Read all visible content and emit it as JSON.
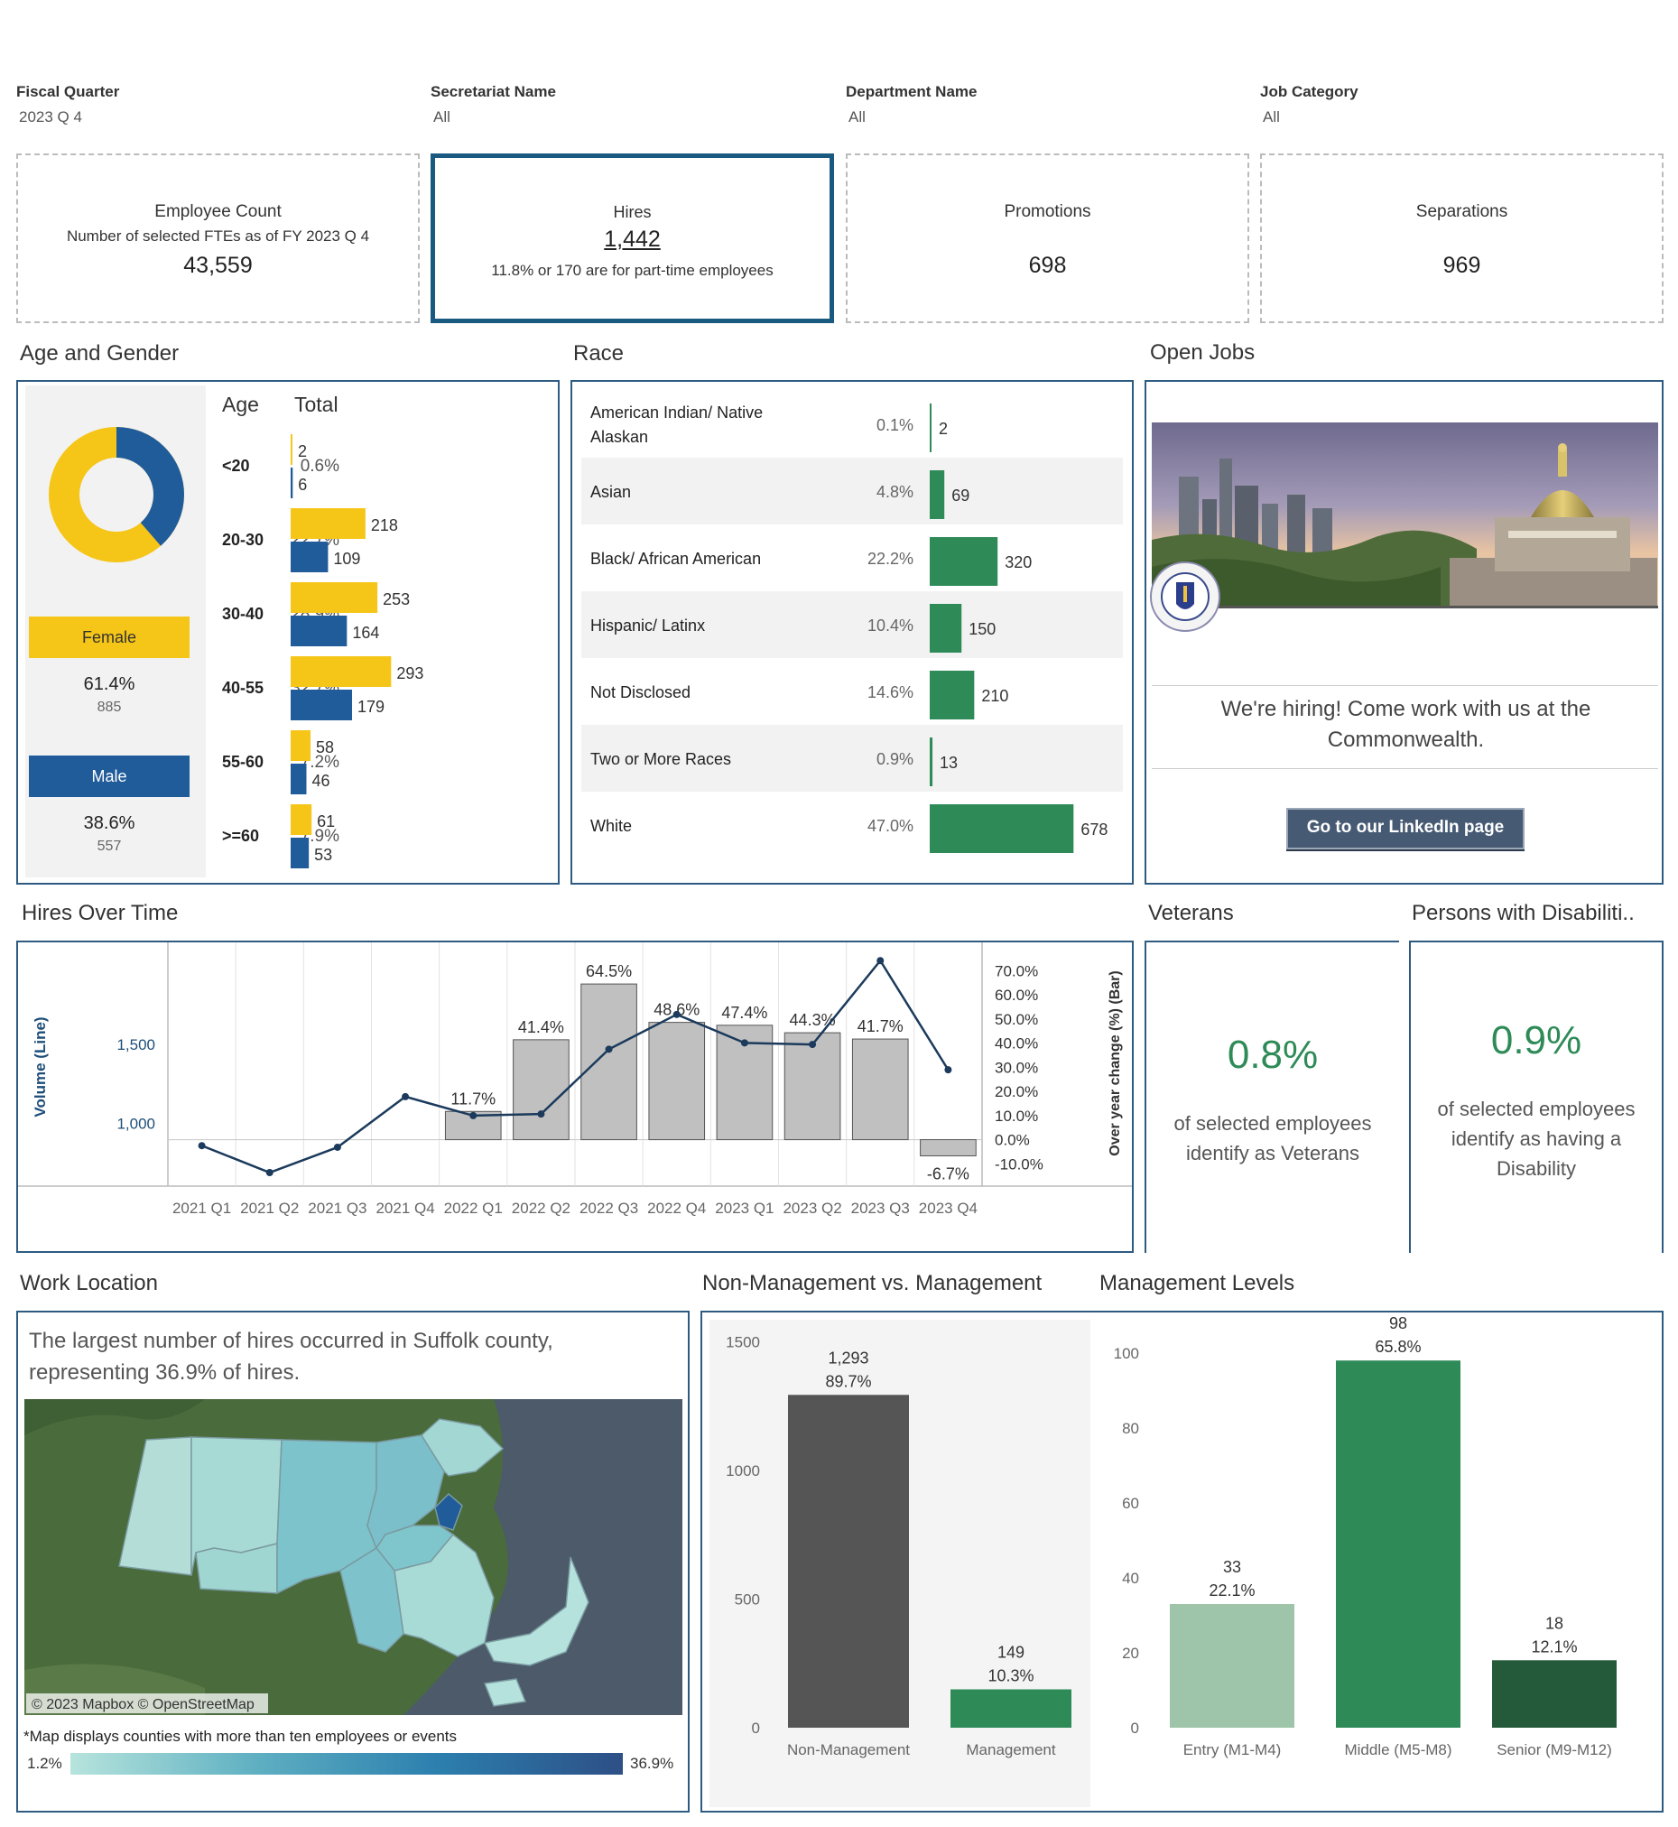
{
  "filters": [
    {
      "label": "Fiscal Quarter",
      "value": "2023 Q 4"
    },
    {
      "label": "Secretariat Name",
      "value": "All"
    },
    {
      "label": "Department Name",
      "value": "All"
    },
    {
      "label": "Job Category",
      "value": "All"
    }
  ],
  "kpis": {
    "employee_count": {
      "title": "Employee Count",
      "subtitle": "Number of selected FTEs as of FY 2023 Q 4",
      "value": "43,559"
    },
    "hires": {
      "title": "Hires",
      "value": "1,442",
      "subtitle": "11.8% or 170 are for part-time employees"
    },
    "promotions": {
      "title": "Promotions",
      "value": "698"
    },
    "separations": {
      "title": "Separations",
      "value": "969"
    }
  },
  "age_gender": {
    "title": "Age and Gender",
    "col_age": "Age",
    "col_total": "Total",
    "female": {
      "label": "Female",
      "pct": "61.4%",
      "count": "885",
      "fraction": 0.614,
      "color": "#f5c518"
    },
    "male": {
      "label": "Male",
      "pct": "38.6%",
      "count": "557",
      "fraction": 0.386,
      "color": "#1f5c99"
    },
    "rows": [
      {
        "age": "<20",
        "total": "0.6%",
        "female": 2,
        "male": 6
      },
      {
        "age": "20-30",
        "total": "22.7%",
        "female": 218,
        "male": 109
      },
      {
        "age": "30-40",
        "total": "28.9%",
        "female": 253,
        "male": 164
      },
      {
        "age": "40-55",
        "total": "32.7%",
        "female": 293,
        "male": 179
      },
      {
        "age": "55-60",
        "total": "7.2%",
        "female": 58,
        "male": 46
      },
      {
        "age": ">=60",
        "total": "7.9%",
        "female": 61,
        "male": 53
      }
    ]
  },
  "race": {
    "title": "Race",
    "color": "#2e8b57",
    "rows": [
      {
        "label": "American Indian/ Native Alaskan",
        "pct": "0.1%",
        "value": 2
      },
      {
        "label": "Asian",
        "pct": "4.8%",
        "value": 69
      },
      {
        "label": "Black/ African American",
        "pct": "22.2%",
        "value": 320
      },
      {
        "label": "Hispanic/ Latinx",
        "pct": "10.4%",
        "value": 150
      },
      {
        "label": "Not Disclosed",
        "pct": "14.6%",
        "value": 210
      },
      {
        "label": "Two or More Races",
        "pct": "0.9%",
        "value": 13
      },
      {
        "label": "White",
        "pct": "47.0%",
        "value": 678
      }
    ]
  },
  "open_jobs": {
    "title": "Open Jobs",
    "message": "We're hiring! Come work with us at the Commonwealth.",
    "button": "Go to our LinkedIn page"
  },
  "hires_over_time": {
    "title": "Hires Over Time",
    "chart_data": {
      "type": "bar+line",
      "categories": [
        "2021 Q1",
        "2021 Q2",
        "2021 Q3",
        "2021 Q4",
        "2022 Q1",
        "2022 Q2",
        "2022 Q3",
        "2022 Q4",
        "2023 Q1",
        "2023 Q2",
        "2023 Q3",
        "2023 Q4"
      ],
      "line_values": [
        860,
        690,
        850,
        1170,
        1050,
        1060,
        1470,
        1690,
        1510,
        1500,
        2030,
        1340
      ],
      "line_ylim": [
        650,
        2100
      ],
      "line_ticks": [
        "1,500",
        "1,000"
      ],
      "line_tick_values": [
        1500,
        1000
      ],
      "bar_values": [
        null,
        null,
        null,
        null,
        11.7,
        41.4,
        64.5,
        48.6,
        47.4,
        44.3,
        41.7,
        -6.7
      ],
      "bar_labels": [
        "",
        "",
        "",
        "",
        "11.7%",
        "41.4%",
        "64.5%",
        "48.6%",
        "47.4%",
        "44.3%",
        "41.7%",
        "-6.7%"
      ],
      "bar_ylim": [
        -14,
        78
      ],
      "bar_ticks": [
        "70.0%",
        "60.0%",
        "50.0%",
        "40.0%",
        "30.0%",
        "20.0%",
        "10.0%",
        "0.0%",
        "-10.0%"
      ],
      "bar_tick_values": [
        70,
        60,
        50,
        40,
        30,
        20,
        10,
        0,
        -10
      ],
      "ylabel_left": "Volume (Line)",
      "ylabel_right": "Over year change (%) (Bar)"
    }
  },
  "veterans": {
    "title": "Veterans",
    "value": "0.8%",
    "text": "of selected employees identify as Veterans"
  },
  "disability": {
    "title": "Persons with Disabiliti..",
    "value": "0.9%",
    "text": "of selected employees identify as having a Disability"
  },
  "work_location": {
    "title": "Work Location",
    "summary": "The largest number of hires occurred in Suffolk county, representing 36.9% of hires.",
    "attribution": "© 2023 Mapbox © OpenStreetMap",
    "note": "*Map displays counties with more than ten employees or events",
    "legend_min": "1.2%",
    "legend_max": "36.9%"
  },
  "nonmgmt_vs_mgmt": {
    "title": "Non-Management vs. Management",
    "chart_data": {
      "type": "bar",
      "categories": [
        "Non-Management",
        "Management"
      ],
      "values": [
        1293,
        149
      ],
      "value_labels": [
        "1,293",
        "149"
      ],
      "pct_labels": [
        "89.7%",
        "10.3%"
      ],
      "colors": [
        "#555555",
        "#2e8b57"
      ],
      "ylim": [
        0,
        1550
      ],
      "ticks": [
        "1500",
        "1000",
        "500",
        "0"
      ],
      "tick_values": [
        1500,
        1000,
        500,
        0
      ]
    }
  },
  "mgmt_levels": {
    "title": "Management Levels",
    "chart_data": {
      "type": "bar",
      "categories": [
        "Entry (M1-M4)",
        "Middle (M5-M8)",
        "Senior (M9-M12)"
      ],
      "values": [
        33,
        98,
        18
      ],
      "pct_labels": [
        "22.1%",
        "65.8%",
        "12.1%"
      ],
      "colors": [
        "#9ec4a9",
        "#2e8b57",
        "#245a3a"
      ],
      "ylim": [
        0,
        106
      ],
      "ticks": [
        "100",
        "80",
        "60",
        "40",
        "20",
        "0"
      ],
      "tick_values": [
        100,
        80,
        60,
        40,
        20,
        0
      ]
    }
  }
}
